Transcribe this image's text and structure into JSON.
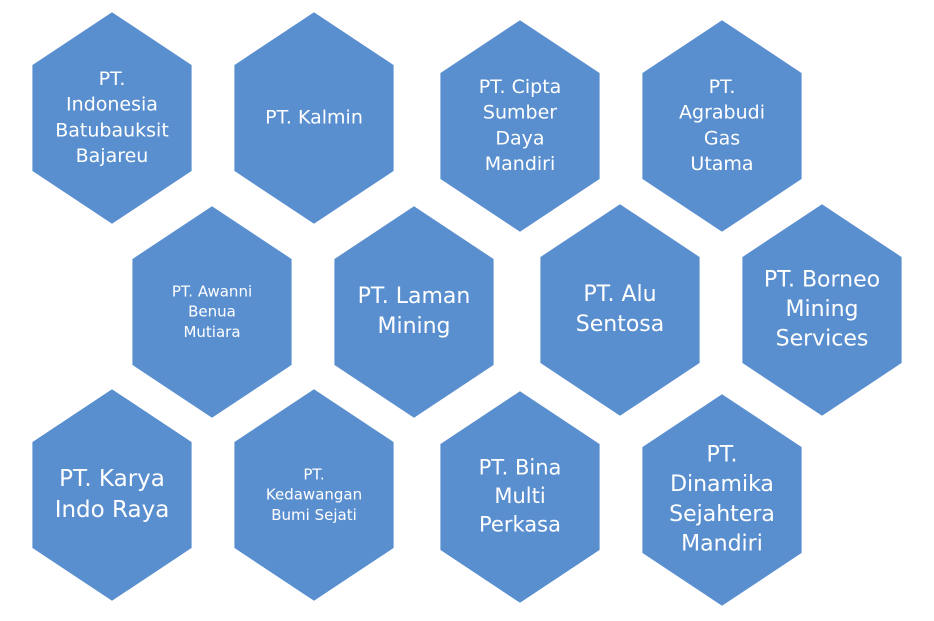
{
  "nodes": [
    {
      "lines": [
        "PT.",
        "Indonesia",
        "Batubauksit",
        "Bajareu"
      ]
    },
    {
      "lines": [
        "PT. Kalmin"
      ]
    },
    {
      "lines": [
        "PT. Cipta",
        "Sumber",
        "Daya",
        "Mandiri"
      ]
    },
    {
      "lines": [
        "PT.",
        "Agrabudi",
        "Gas",
        "Utama"
      ]
    },
    {
      "lines": [
        "PT. Awanni",
        "Benua",
        "Mutiara"
      ]
    },
    {
      "lines": [
        "PT. Laman",
        "Mining"
      ]
    },
    {
      "lines": [
        "PT. Alu",
        "Sentosa"
      ]
    },
    {
      "lines": [
        "PT. Borneo",
        "Mining",
        "Services"
      ]
    },
    {
      "lines": [
        "PT. Karya",
        "Indo Raya"
      ]
    },
    {
      "lines": [
        "PT.",
        "Kedawangan",
        "Bumi Sejati"
      ]
    },
    {
      "lines": [
        "PT. Bina",
        "Multi",
        "Perkasa"
      ]
    },
    {
      "lines": [
        "PT.",
        "Dinamika",
        "Sejahtera",
        "Mandiri"
      ]
    }
  ]
}
